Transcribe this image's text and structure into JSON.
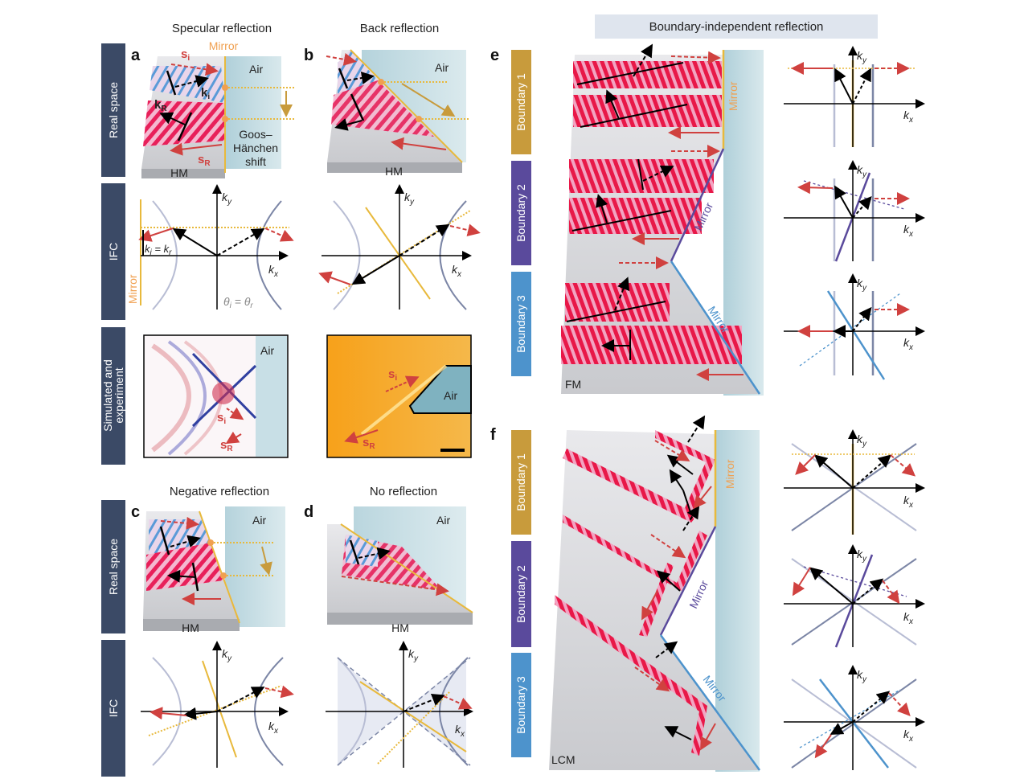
{
  "titles": {
    "specular": "Specular reflection",
    "back": "Back reflection",
    "negative": "Negative reflection",
    "none": "No reflection",
    "boundary_independent": "Boundary-independent reflection"
  },
  "panel_letters": [
    "a",
    "b",
    "c",
    "d",
    "e",
    "f"
  ],
  "row_labels": {
    "real_space": "Real space",
    "ifc": "IFC",
    "sim_exp_1": "Simulated and",
    "sim_exp_2": "experiment"
  },
  "labels": {
    "mirror": "Mirror",
    "air": "Air",
    "hm": "HM",
    "fm": "FM",
    "lcm": "LCM",
    "goos_1": "Goos–",
    "goos_2": "Hänchen",
    "goos_3": "shift",
    "s": "s",
    "sub_i": "i",
    "sub_R": "R",
    "sub_r": "r",
    "k": "k",
    "sub_x": "x",
    "sub_y": "y",
    "theta": "θ",
    "equals": " = ",
    "parallel": "||"
  },
  "boundaries": [
    "Boundary 1",
    "Boundary 2",
    "Boundary 3"
  ],
  "colors": {
    "navy": "#3b4a66",
    "gold": "#c89b3c",
    "purple": "#5a4a9c",
    "blue": "#4d93cc",
    "red": "#d0413f",
    "mirror_orange": "#f0a050",
    "ifc_line": "#e8c04a",
    "hyperbola_light": "#b8bdd4",
    "hyperbola_dark": "#7c86a6",
    "air": "#a8ccd6",
    "title_box": "#dfe5ee"
  }
}
